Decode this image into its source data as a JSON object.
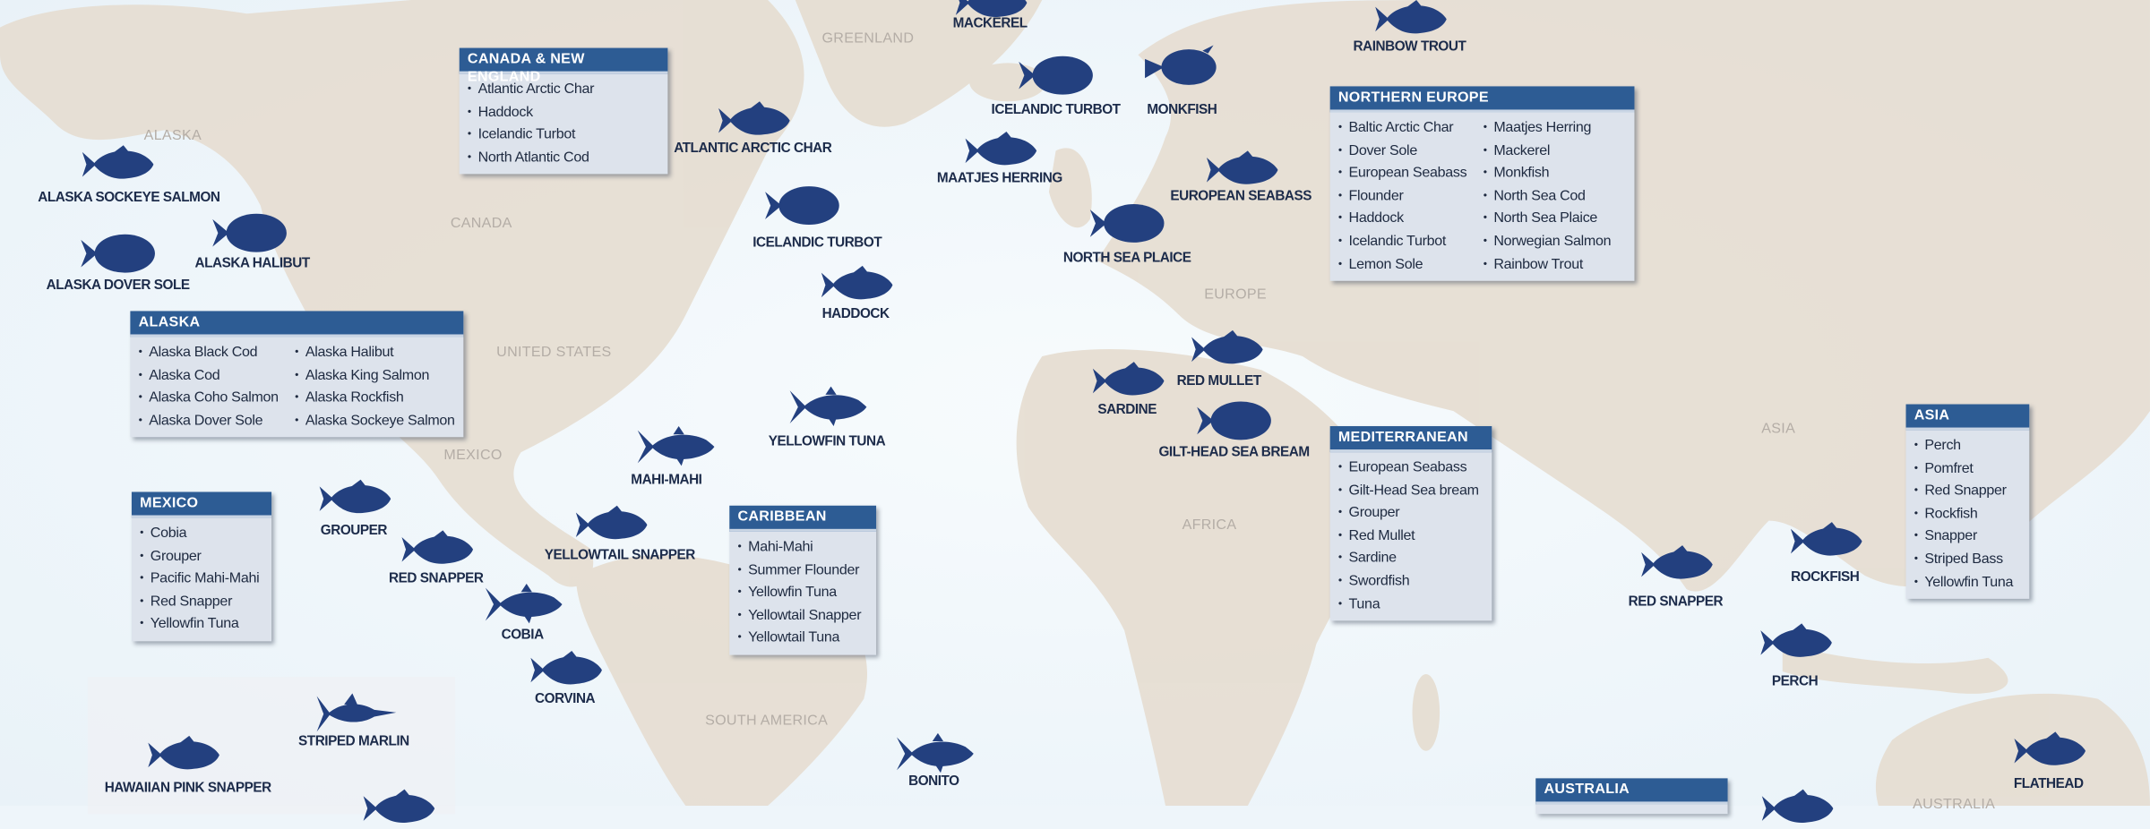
{
  "colors": {
    "fish": "#23407f",
    "box_header": "#2d5c94",
    "box_body": "#dde3ec",
    "land": "#e6ddd0",
    "water": "#eef5fa"
  },
  "countries": [
    "GREENLAND",
    "ALASKA",
    "CANADA",
    "UNITED STATES",
    "EUROPE",
    "MEXICO",
    "AFRICA",
    "SOUTH AMERICA",
    "ASIA",
    "AUSTRALIA"
  ],
  "fish": [
    {
      "label": "MACKEREL",
      "icon": "fish-icon"
    },
    {
      "label": "RAINBOW TROUT",
      "icon": "fish-icon"
    },
    {
      "label": "ICELANDIC TURBOT",
      "icon": "flatfish-icon"
    },
    {
      "label": "MONKFISH",
      "icon": "monkfish-icon"
    },
    {
      "label": "ATLANTIC ARCTIC CHAR",
      "icon": "fish-icon"
    },
    {
      "label": "MAATJES HERRING",
      "icon": "fish-icon"
    },
    {
      "label": "EUROPEAN SEABASS",
      "icon": "fish-icon"
    },
    {
      "label": "ALASKA SOCKEYE SALMON",
      "icon": "fish-icon"
    },
    {
      "label": "ICELANDIC TURBOT",
      "icon": "flatfish-icon"
    },
    {
      "label": "NORTH SEA PLAICE",
      "icon": "flatfish-icon"
    },
    {
      "label": "ALASKA HALIBUT",
      "icon": "flatfish-icon"
    },
    {
      "label": "ALASKA DOVER SOLE",
      "icon": "flatfish-icon"
    },
    {
      "label": "HADDOCK",
      "icon": "fish-icon"
    },
    {
      "label": "RED MULLET",
      "icon": "fish-icon"
    },
    {
      "label": "SARDINE",
      "icon": "fish-icon"
    },
    {
      "label": "YELLOWFIN TUNA",
      "icon": "tuna-icon"
    },
    {
      "label": "GILT-HEAD SEA BREAM",
      "icon": "flatfish-icon"
    },
    {
      "label": "MAHI-MAHI",
      "icon": "tuna-icon"
    },
    {
      "label": "GROUPER",
      "icon": "fish-icon"
    },
    {
      "label": "YELLOWTAIL SNAPPER",
      "icon": "fish-icon"
    },
    {
      "label": "RED SNAPPER",
      "icon": "fish-icon"
    },
    {
      "label": "COBIA",
      "icon": "tuna-icon"
    },
    {
      "label": "CORVINA",
      "icon": "fish-icon"
    },
    {
      "label": "RED SNAPPER",
      "icon": "fish-icon"
    },
    {
      "label": "ROCKFISH",
      "icon": "fish-icon"
    },
    {
      "label": "PERCH",
      "icon": "fish-icon"
    },
    {
      "label": "BONITO",
      "icon": "tuna-icon"
    },
    {
      "label": "STRIPED MARLIN",
      "icon": "marlin-icon"
    },
    {
      "label": "HAWAIIAN PINK SNAPPER",
      "icon": "fish-icon"
    },
    {
      "label": "FLATHEAD",
      "icon": "fish-icon"
    },
    {
      "label": "",
      "icon": "fish-icon"
    },
    {
      "label": "",
      "icon": "fish-icon"
    }
  ],
  "regions": [
    {
      "title": "CANADA & NEW ENGLAND",
      "columns": [
        [
          "Atlantic Arctic Char",
          "Haddock",
          "Icelandic Turbot",
          "North Atlantic Cod"
        ]
      ]
    },
    {
      "title": "NORTHERN EUROPE",
      "columns": [
        [
          "Baltic Arctic Char",
          "Dover Sole",
          "European Seabass",
          "Flounder",
          "Haddock",
          "Icelandic Turbot",
          "Lemon Sole"
        ],
        [
          "Maatjes Herring",
          "Mackerel",
          "Monkfish",
          "North Sea Cod",
          "North Sea Plaice",
          "Norwegian Salmon",
          "Rainbow Trout"
        ]
      ]
    },
    {
      "title": "ALASKA",
      "columns": [
        [
          "Alaska Black Cod",
          "Alaska Cod",
          "Alaska Coho Salmon",
          "Alaska Dover Sole"
        ],
        [
          "Alaska Halibut",
          "Alaska King Salmon",
          "Alaska Rockfish",
          "Alaska Sockeye Salmon"
        ]
      ]
    },
    {
      "title": "MEXICO",
      "columns": [
        [
          "Cobia",
          "Grouper",
          "Pacific Mahi-Mahi",
          "Red Snapper",
          "Yellowfin Tuna"
        ]
      ]
    },
    {
      "title": "CARIBBEAN",
      "columns": [
        [
          "Mahi-Mahi",
          "Summer Flounder",
          "Yellowfin Tuna",
          "Yellowtail Snapper",
          "Yellowtail Tuna"
        ]
      ]
    },
    {
      "title": "MEDITERRANEAN",
      "columns": [
        [
          "European Seabass",
          "Gilt-Head Sea bream",
          "Grouper",
          "Red Mullet",
          "Sardine",
          "Swordfish",
          "Tuna"
        ]
      ]
    },
    {
      "title": "ASIA",
      "columns": [
        [
          "Perch",
          "Pomfret",
          "Red Snapper",
          "Rockfish",
          "Snapper",
          "Striped Bass",
          "Yellowfin Tuna"
        ]
      ]
    },
    {
      "title": "AUSTRALIA",
      "columns": [
        []
      ]
    }
  ]
}
